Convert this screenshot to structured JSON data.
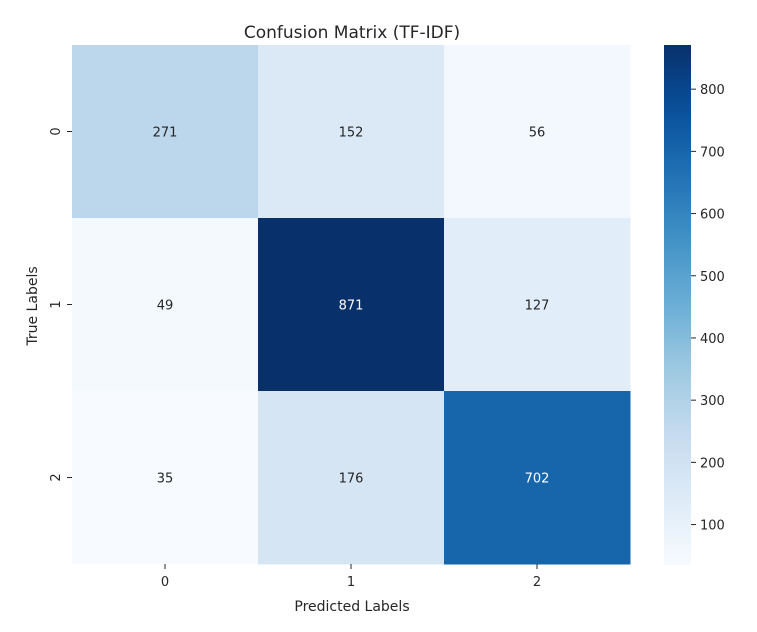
{
  "chart_data": {
    "type": "heatmap",
    "title": "Confusion Matrix (TF-IDF)",
    "xlabel": "Predicted Labels",
    "ylabel": "True Labels",
    "x_categories": [
      "0",
      "1",
      "2"
    ],
    "y_categories": [
      "0",
      "1",
      "2"
    ],
    "values": [
      [
        271,
        152,
        56
      ],
      [
        49,
        871,
        127
      ],
      [
        35,
        176,
        702
      ]
    ],
    "colormap": "Blues",
    "color_range": [
      35,
      871
    ],
    "colorbar_ticks": [
      100,
      200,
      300,
      400,
      500,
      600,
      700,
      800
    ],
    "grid": false
  }
}
